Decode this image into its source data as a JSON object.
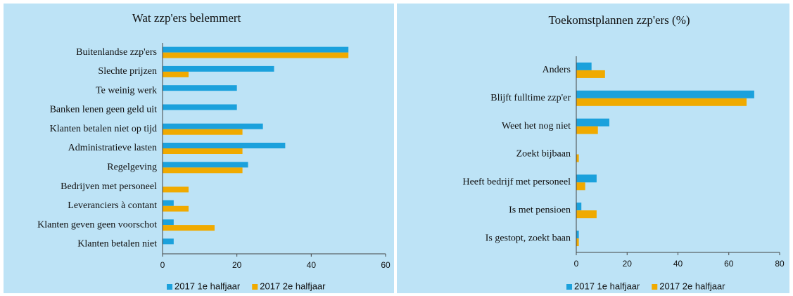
{
  "chart_data": [
    {
      "type": "bar",
      "orientation": "horizontal",
      "title": "Wat zzp'ers belemmert",
      "categories": [
        "Buitenlandse zzp'ers",
        "Slechte prijzen",
        "Te weinig werk",
        "Banken lenen geen geld uit",
        "Klanten betalen niet op tijd",
        "Administratieve lasten",
        "Regelgeving",
        "Bedrijven met personeel",
        "Leveranciers  à contant",
        "Klanten geven geen voorschot",
        "Klanten betalen niet"
      ],
      "series": [
        {
          "name": "2017 1e halfjaar",
          "color": "#1ba1dc",
          "values": [
            50,
            30,
            20,
            20,
            27,
            33,
            23,
            0,
            3,
            3,
            3
          ]
        },
        {
          "name": "2017 2e halfjaar",
          "color": "#f0aa00",
          "values": [
            50,
            7,
            0,
            0,
            21.5,
            21.5,
            21.5,
            7,
            7,
            14,
            0
          ]
        }
      ],
      "xlim": [
        0,
        60
      ],
      "xticks": [
        0,
        20,
        40,
        60
      ],
      "grid": false
    },
    {
      "type": "bar",
      "orientation": "horizontal",
      "title": "Toekomstplannen zzp'ers (%)",
      "categories": [
        "Anders",
        "Blijft fulltime zzp'er",
        "Weet het nog niet",
        "Zoekt bijbaan",
        "Heeft bedrijf met personeel",
        "Is met pensioen",
        "Is gestopt, zoekt baan"
      ],
      "series": [
        {
          "name": "2017 1e halfjaar",
          "color": "#1ba1dc",
          "values": [
            6,
            70,
            13,
            0,
            8,
            2,
            1
          ]
        },
        {
          "name": "2017 2e halfjaar",
          "color": "#f0aa00",
          "values": [
            11.3,
            67,
            8.5,
            1,
            3.5,
            8,
            1
          ]
        }
      ],
      "xlim": [
        0,
        80
      ],
      "xticks": [
        0,
        20,
        40,
        60,
        80
      ],
      "grid": false
    }
  ]
}
